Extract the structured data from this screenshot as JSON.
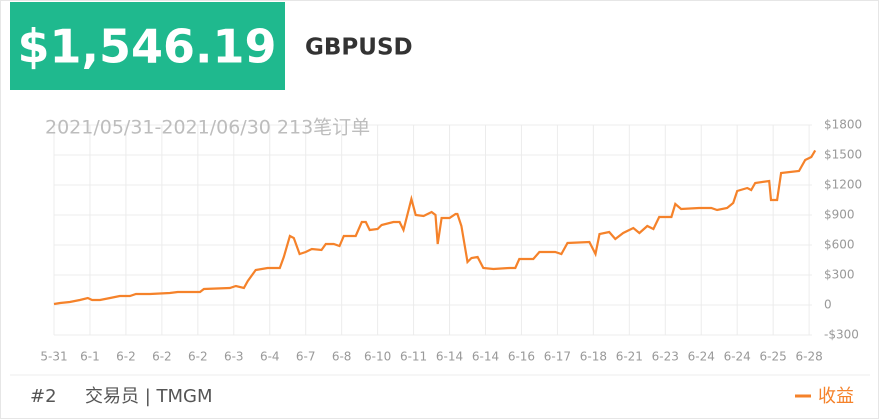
{
  "header": {
    "amount": "$1,546.19",
    "symbol": "GBPUSD"
  },
  "chart_data": {
    "type": "line",
    "subtitle": "2021/05/31-2021/06/30 213笔订单",
    "x": [
      0,
      1.7,
      4.4,
      7.2,
      9.4,
      10.6,
      12.8,
      15.6,
      18.3,
      21.1,
      22.8,
      26.7,
      32.2,
      34.4,
      40.6,
      41.7,
      48.9,
      50.6,
      52.8,
      53.9,
      56.1,
      59.4,
      62.8,
      63.9,
      65.6,
      66.7,
      68.3,
      70,
      71.7,
      74.4,
      75.6,
      77.8,
      79.4,
      80.6,
      83.9,
      85.6,
      86.7,
      87.8,
      90,
      91.1,
      94.4,
      96.1,
      97.2,
      99.4,
      100.6,
      102.8,
      105,
      106.1,
      106.7,
      107.8,
      110,
      111.7,
      112.2,
      113.3,
      115,
      116.1,
      117.8,
      119.4,
      122.2,
      126.7,
      128.3,
      129.4,
      133.3,
      135,
      139.4,
      141.1,
      142.8,
      148.9,
      150.6,
      151.7,
      154.4,
      156.1,
      158.3,
      161.1,
      162.8,
      165,
      166.7,
      168.3,
      171.7,
      172.8,
      174.4,
      179.4,
      182.8,
      184.4,
      187.2,
      188.9,
      190,
      192.8,
      193.9,
      195,
      198.9,
      199.4,
      201.1,
      202.2,
      207.2,
      208.9,
      210.6,
      211.7
    ],
    "series": [
      {
        "name": "收益",
        "color": "#f5822a",
        "values": [
          10,
          20,
          30,
          50,
          70,
          50,
          50,
          70,
          90,
          90,
          110,
          110,
          120,
          130,
          130,
          160,
          170,
          190,
          170,
          240,
          350,
          370,
          370,
          480,
          690,
          670,
          510,
          530,
          560,
          550,
          610,
          610,
          590,
          690,
          690,
          830,
          830,
          750,
          760,
          800,
          830,
          830,
          750,
          1060,
          900,
          890,
          930,
          900,
          610,
          870,
          870,
          910,
          910,
          790,
          430,
          470,
          480,
          370,
          360,
          370,
          370,
          460,
          460,
          530,
          530,
          510,
          620,
          630,
          510,
          710,
          730,
          660,
          720,
          770,
          720,
          790,
          760,
          880,
          880,
          1010,
          960,
          970,
          970,
          950,
          970,
          1020,
          1140,
          1170,
          1150,
          1220,
          1240,
          1050,
          1050,
          1320,
          1340,
          1450,
          1480,
          1546.19
        ]
      }
    ],
    "xlim": [
      0,
      212
    ],
    "xticks": [
      {
        "value": 0,
        "label": "5-31"
      },
      {
        "value": 10,
        "label": "6-1"
      },
      {
        "value": 20,
        "label": "6-2"
      },
      {
        "value": 30,
        "label": "6-2"
      },
      {
        "value": 40,
        "label": "6-2"
      },
      {
        "value": 50,
        "label": "6-3"
      },
      {
        "value": 60,
        "label": "6-4"
      },
      {
        "value": 70,
        "label": "6-7"
      },
      {
        "value": 80,
        "label": "6-8"
      },
      {
        "value": 90,
        "label": "6-10"
      },
      {
        "value": 100,
        "label": "6-11"
      },
      {
        "value": 110,
        "label": "6-14"
      },
      {
        "value": 120,
        "label": "6-14"
      },
      {
        "value": 130,
        "label": "6-16"
      },
      {
        "value": 140,
        "label": "6-17"
      },
      {
        "value": 150,
        "label": "6-18"
      },
      {
        "value": 160,
        "label": "6-21"
      },
      {
        "value": 170,
        "label": "6-23"
      },
      {
        "value": 180,
        "label": "6-24"
      },
      {
        "value": 190,
        "label": "6-24"
      },
      {
        "value": 200,
        "label": "6-25"
      },
      {
        "value": 210,
        "label": "6-28"
      }
    ],
    "ylim": [
      -300,
      1800
    ],
    "yticks": [
      {
        "value": 1800,
        "label": "$1800"
      },
      {
        "value": 1500,
        "label": "$1500"
      },
      {
        "value": 1200,
        "label": "$1200"
      },
      {
        "value": 900,
        "label": "$900"
      },
      {
        "value": 600,
        "label": "$600"
      },
      {
        "value": 300,
        "label": "$300"
      },
      0,
      {
        "value": -300,
        "label": "-$300"
      }
    ],
    "grid": true
  },
  "footer": {
    "rank": "#2",
    "trader": "交易员 | TMGM"
  }
}
